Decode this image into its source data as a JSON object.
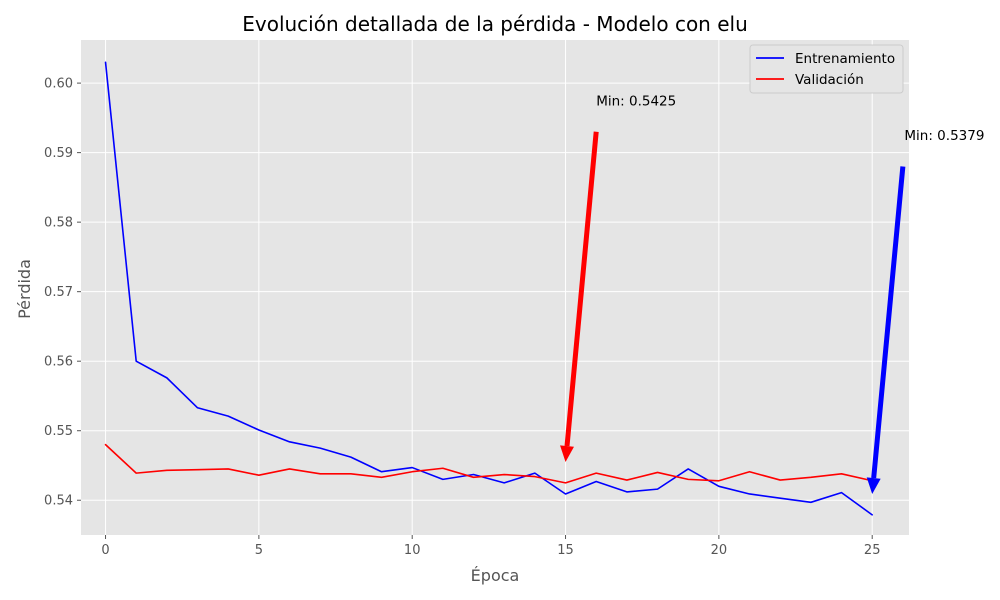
{
  "chart_data": {
    "type": "line",
    "title": "Evolución detallada de la pérdida - Modelo con elu",
    "xlabel": "Época",
    "ylabel": "Pérdida",
    "xlim": [
      -0.8,
      26.2
    ],
    "ylim": [
      0.535,
      0.6062
    ],
    "xticks": [
      0,
      5,
      10,
      15,
      20,
      25
    ],
    "yticks": [
      0.54,
      0.55,
      0.56,
      0.57,
      0.58,
      0.59,
      0.6
    ],
    "ytick_labels": [
      "0.54",
      "0.55",
      "0.56",
      "0.57",
      "0.58",
      "0.59",
      "0.60"
    ],
    "grid": true,
    "legend_position": "top-right",
    "x": [
      0,
      1,
      2,
      3,
      4,
      5,
      6,
      7,
      8,
      9,
      10,
      11,
      12,
      13,
      14,
      15,
      16,
      17,
      18,
      19,
      20,
      21,
      22,
      23,
      24,
      25
    ],
    "series": [
      {
        "name": "Entrenamiento",
        "color": "#0000ff",
        "values": [
          0.603,
          0.56,
          0.5576,
          0.5533,
          0.5521,
          0.5501,
          0.5484,
          0.5475,
          0.5462,
          0.5441,
          0.5447,
          0.543,
          0.5437,
          0.5425,
          0.5439,
          0.5409,
          0.5427,
          0.5412,
          0.5416,
          0.5445,
          0.542,
          0.5409,
          0.5403,
          0.5397,
          0.5411,
          0.5379
        ]
      },
      {
        "name": "Validación",
        "color": "#ff0000",
        "values": [
          0.548,
          0.5439,
          0.5443,
          0.5444,
          0.5445,
          0.5436,
          0.5445,
          0.5438,
          0.5438,
          0.5433,
          0.5441,
          0.5446,
          0.5433,
          0.5437,
          0.5434,
          0.5425,
          0.5439,
          0.5429,
          0.544,
          0.543,
          0.5428,
          0.5441,
          0.5429,
          0.5433,
          0.5438,
          0.5428
        ]
      }
    ],
    "annotations": [
      {
        "text": "Min: 0.5425",
        "color": "#ff0000",
        "target": [
          15,
          0.5455
        ],
        "text_at": [
          16,
          0.5968
        ],
        "tail_at": [
          16,
          0.593
        ]
      },
      {
        "text": "Min: 0.5379",
        "color": "#0000ff",
        "target": [
          25,
          0.5409
        ],
        "text_at": [
          26.05,
          0.5918
        ],
        "tail_at": [
          26,
          0.588
        ]
      }
    ]
  }
}
